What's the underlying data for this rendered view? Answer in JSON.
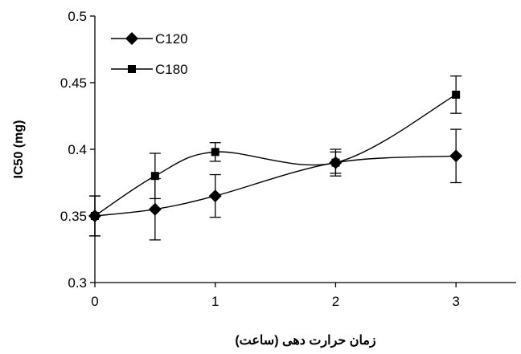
{
  "chart_data": {
    "type": "line",
    "title": "",
    "xlabel": "زمان حرارت دهی (ساعت)",
    "ylabel": "IC50 (mg)",
    "xlim": [
      0,
      3.5
    ],
    "ylim": [
      0.3,
      0.5
    ],
    "xticks": [
      "0",
      "1",
      "2",
      "3"
    ],
    "yticks": [
      "0.3",
      "0.35",
      "0.4",
      "0.45",
      "0.5"
    ],
    "grid": false,
    "legend_position": "top-left",
    "series": [
      {
        "name": "C120",
        "marker": "diamond",
        "color": "#000000",
        "x": [
          0,
          0.5,
          1,
          2,
          3
        ],
        "y": [
          0.35,
          0.355,
          0.365,
          0.39,
          0.395
        ],
        "err": [
          0.015,
          0.023,
          0.016,
          0.008,
          0.02
        ]
      },
      {
        "name": "C180",
        "marker": "square",
        "color": "#000000",
        "x": [
          0,
          0.5,
          1,
          2,
          3
        ],
        "y": [
          0.35,
          0.38,
          0.398,
          0.39,
          0.441
        ],
        "err": [
          0.015,
          0.017,
          0.007,
          0.01,
          0.014
        ]
      }
    ]
  }
}
